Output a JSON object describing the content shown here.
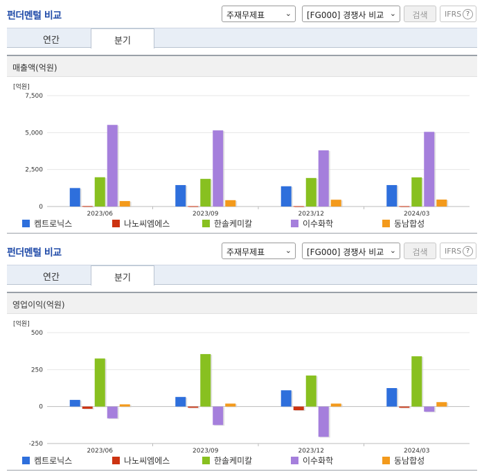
{
  "header": {
    "title": "펀더멘털 비교",
    "statement_select": "주재무제표",
    "peer_select": "[FG000] 경쟁사 비교",
    "search_label": "검색",
    "ifrs_label": "IFRS",
    "help_label": "?"
  },
  "tabs": {
    "annual": "연간",
    "quarter": "분기",
    "active": "quarter"
  },
  "colors": {
    "켐트로닉스": "#2e6fdc",
    "나노씨엠에스": "#cc3311",
    "한솔케미칼": "#88c020",
    "이수화학": "#a57fdc",
    "동남합성": "#f39a1c"
  },
  "legend": [
    "켐트로닉스",
    "나노씨엠에스",
    "한솔케미칼",
    "이수화학",
    "동남합성"
  ],
  "chart_data": [
    {
      "type": "bar",
      "title": "매출액(억원)",
      "unit": "[억원]",
      "categories": [
        "2023/06",
        "2023/09",
        "2023/12",
        "2024/03"
      ],
      "yticks": [
        "7,500",
        "5,000",
        "2,500",
        "0"
      ],
      "ylim": [
        0,
        7500
      ],
      "series": [
        {
          "name": "켐트로닉스",
          "values": [
            1250,
            1450,
            1370,
            1450
          ]
        },
        {
          "name": "나노씨엠에스",
          "values": [
            30,
            25,
            25,
            25
          ]
        },
        {
          "name": "한솔케미칼",
          "values": [
            1980,
            1870,
            1930,
            1970
          ]
        },
        {
          "name": "이수화학",
          "values": [
            5520,
            5150,
            3800,
            5050
          ]
        },
        {
          "name": "동남합성",
          "values": [
            370,
            430,
            460,
            470
          ]
        }
      ]
    },
    {
      "type": "bar",
      "title": "영업이익(억원)",
      "unit": "[억원]",
      "categories": [
        "2023/06",
        "2023/09",
        "2023/12",
        "2024/03"
      ],
      "yticks": [
        "500",
        "250",
        "0",
        "-250"
      ],
      "ylim": [
        -250,
        500
      ],
      "series": [
        {
          "name": "켐트로닉스",
          "values": [
            45,
            65,
            110,
            125
          ]
        },
        {
          "name": "나노씨엠에스",
          "values": [
            -15,
            -8,
            -25,
            -8
          ]
        },
        {
          "name": "한솔케미칼",
          "values": [
            325,
            355,
            210,
            340
          ]
        },
        {
          "name": "이수화학",
          "values": [
            -80,
            -125,
            -205,
            -35
          ]
        },
        {
          "name": "동남합성",
          "values": [
            15,
            20,
            20,
            30
          ]
        }
      ]
    }
  ]
}
